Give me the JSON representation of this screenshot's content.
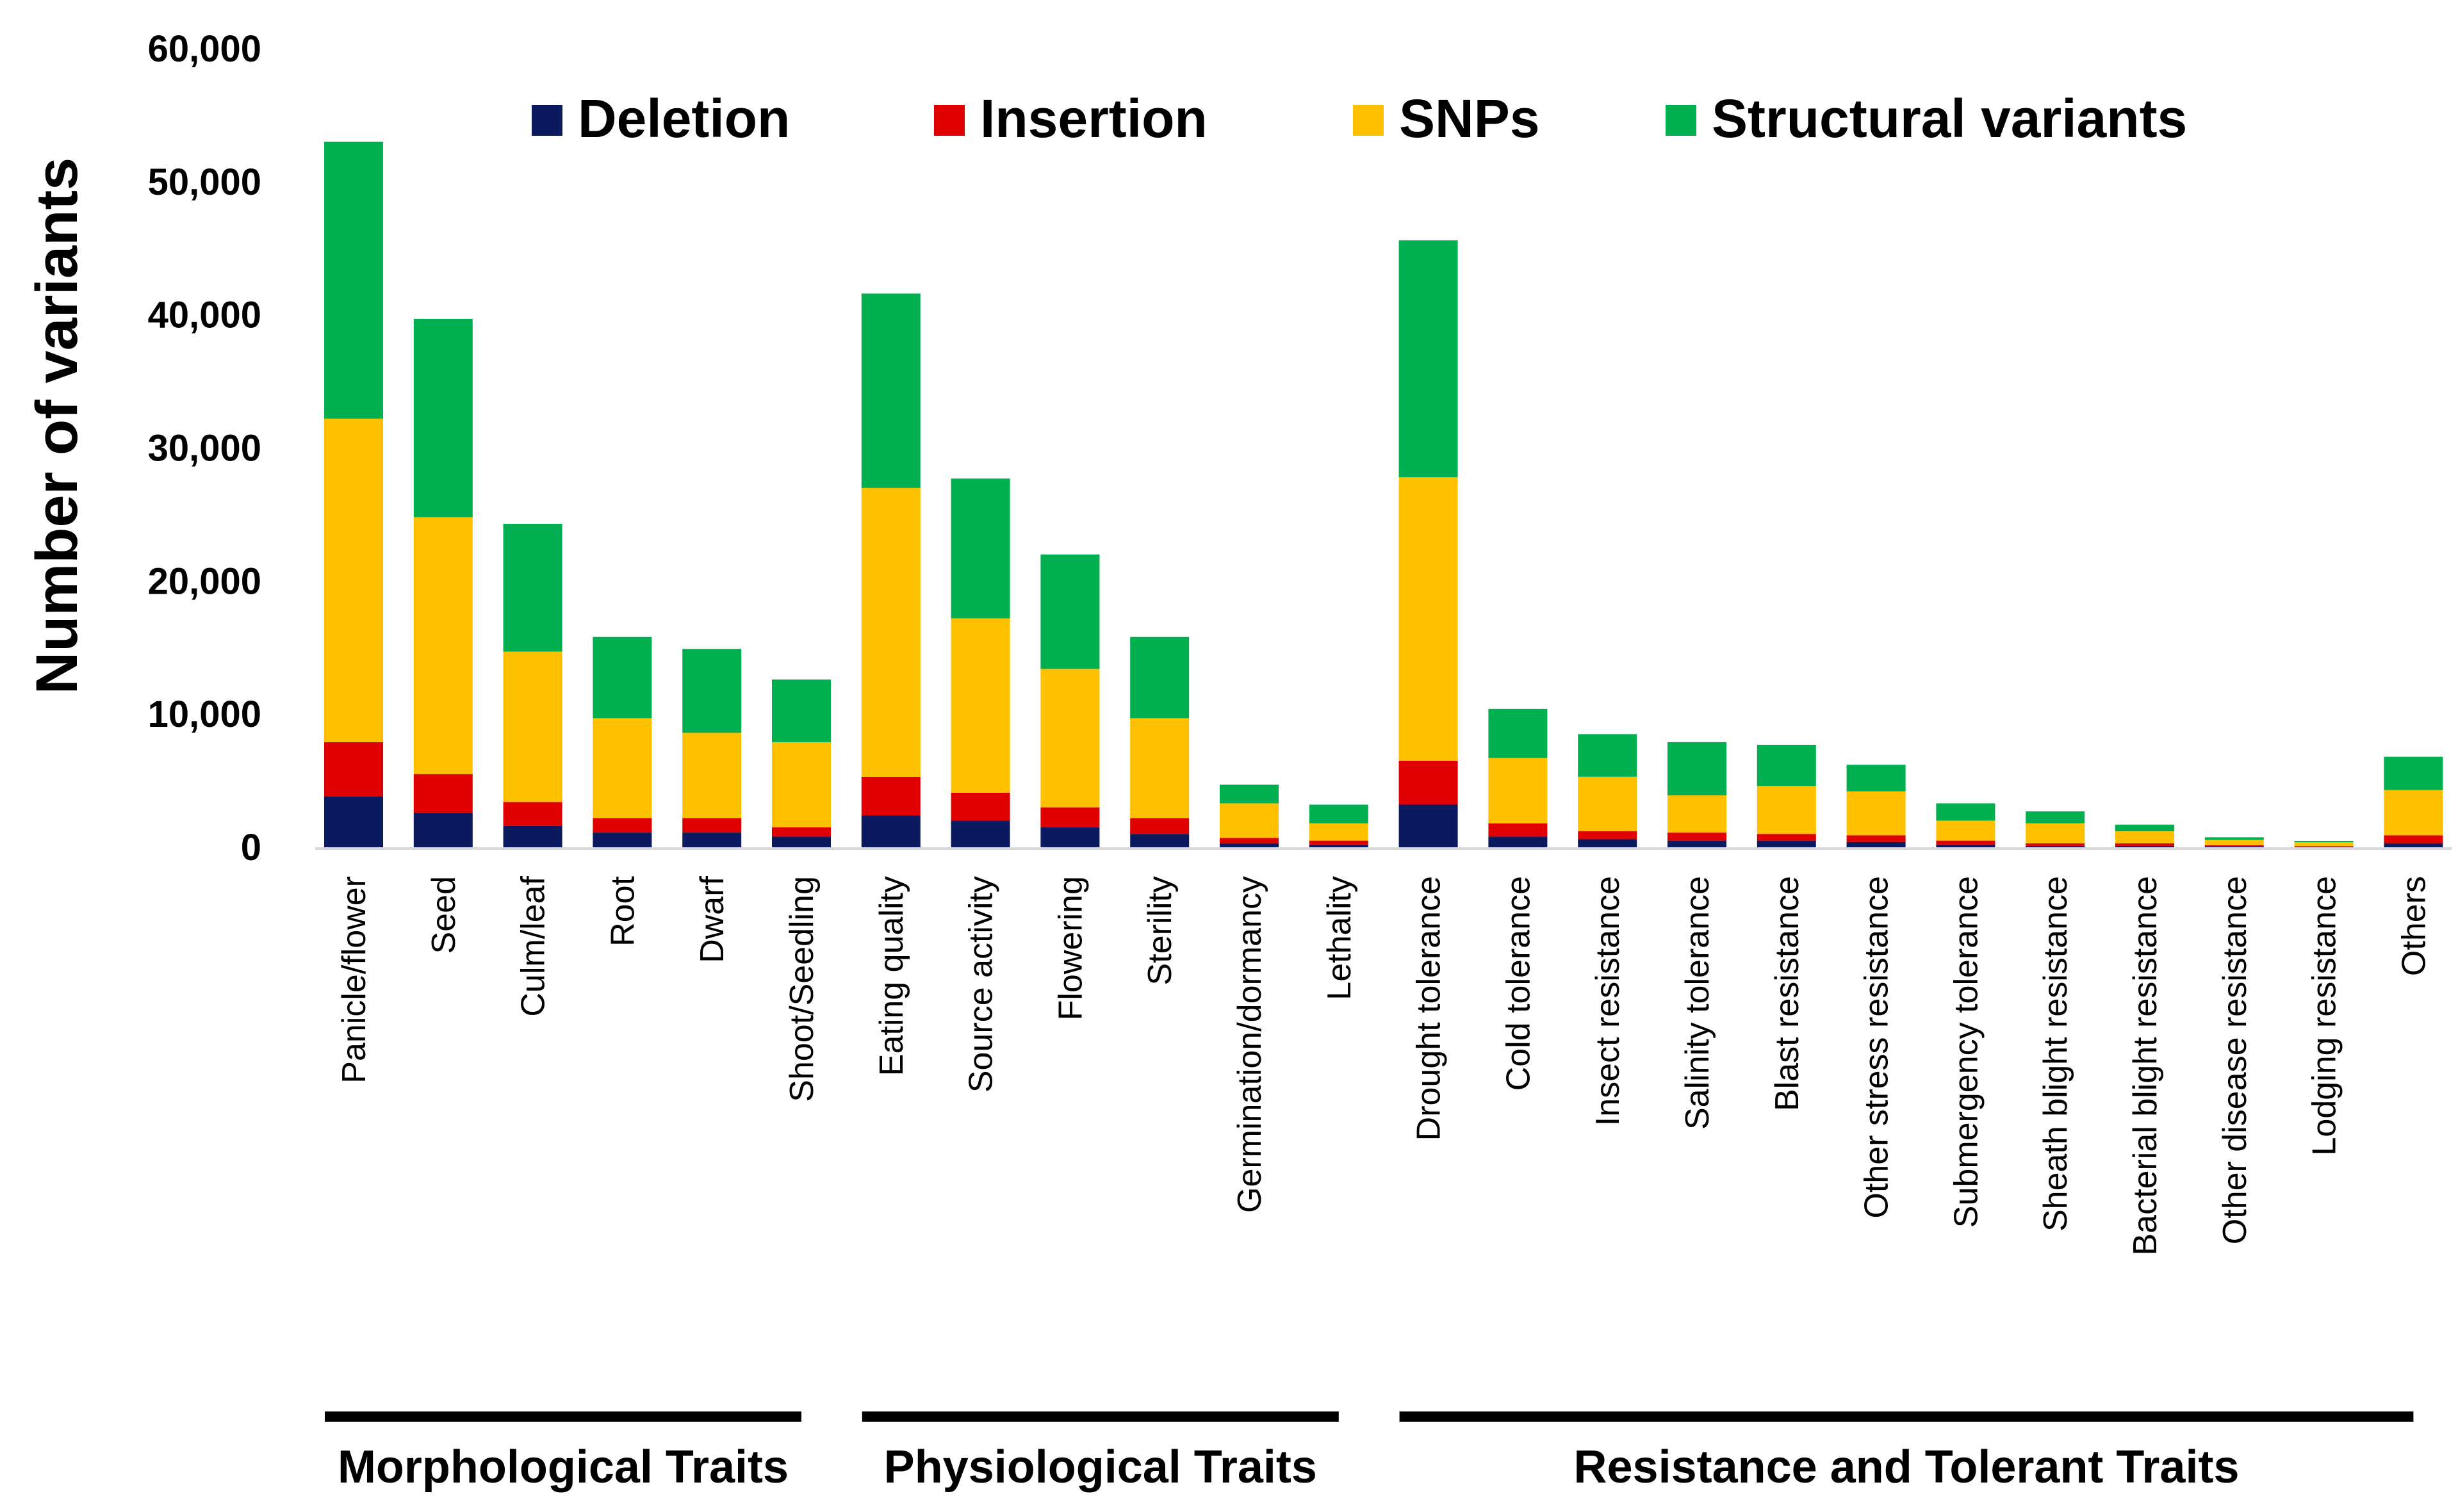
{
  "chart_data": {
    "type": "bar",
    "stacked": true,
    "ylabel": "Number of variants",
    "xlabel": "",
    "ylim": [
      0,
      60000
    ],
    "yticks": [
      "0",
      "10,000",
      "20,000",
      "30,000",
      "40,000",
      "50,000",
      "60,000"
    ],
    "ytick_values": [
      0,
      10000,
      20000,
      30000,
      40000,
      50000,
      60000
    ],
    "grid": false,
    "legend_position": "top",
    "categories": [
      "Panicle/flower",
      "Seed",
      "Culm/leaf",
      "Root",
      "Dwarf",
      "Shoot/Seedling",
      "Eating quality",
      "Source activity",
      "Flowering",
      "Sterility",
      "Germination/dormancy",
      "Lethality",
      "Drought tolerance",
      "Cold tolerance",
      "Insect resistance",
      "Salinity tolerance",
      "Blast resistance",
      "Other stress resistance",
      "Submergency tolerance",
      "Sheath blight resistance",
      "Bacterial blight resistance",
      "Other disease resistance",
      "Lodging resistance",
      "Others"
    ],
    "series": [
      {
        "name": "Deletion",
        "color": "#0b1a5e",
        "values": [
          3800,
          2600,
          1600,
          1100,
          1100,
          800,
          2400,
          2000,
          1500,
          1000,
          300,
          200,
          3200,
          800,
          600,
          500,
          500,
          400,
          200,
          100,
          100,
          50,
          30,
          300
        ]
      },
      {
        "name": "Insertion",
        "color": "#e00000",
        "values": [
          4100,
          2900,
          1800,
          1100,
          1100,
          700,
          2900,
          2100,
          1500,
          1200,
          400,
          300,
          3300,
          1000,
          600,
          600,
          500,
          500,
          300,
          200,
          200,
          100,
          50,
          600
        ]
      },
      {
        "name": "SNPs",
        "color": "#ffc000",
        "values": [
          24300,
          19300,
          11300,
          7500,
          6400,
          6400,
          21700,
          13100,
          10400,
          7500,
          2600,
          1300,
          21300,
          4900,
          4100,
          2800,
          3600,
          3300,
          1500,
          1500,
          900,
          400,
          300,
          3400
        ]
      },
      {
        "name": "Structural  variants",
        "color": "#00b050",
        "values": [
          20800,
          14900,
          9600,
          6100,
          6300,
          4700,
          14600,
          10500,
          8600,
          6100,
          1400,
          1400,
          17800,
          3700,
          3200,
          4000,
          3100,
          2000,
          1300,
          900,
          500,
          200,
          100,
          2500
        ]
      }
    ],
    "groups": [
      {
        "label": "Morphological Traits",
        "start": 0,
        "end": 5
      },
      {
        "label": "Physiological Traits",
        "start": 6,
        "end": 11
      },
      {
        "label": "Resistance and Tolerant Traits",
        "start": 12,
        "end": 23
      }
    ]
  }
}
